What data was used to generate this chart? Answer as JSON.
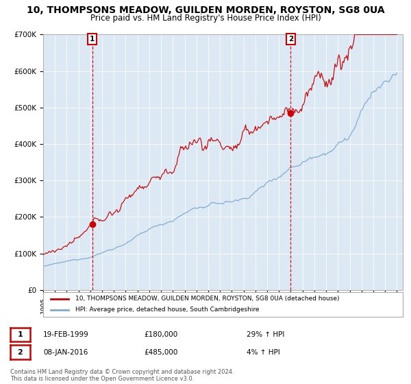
{
  "title": "10, THOMPSONS MEADOW, GUILDEN MORDEN, ROYSTON, SG8 0UA",
  "subtitle": "Price paid vs. HM Land Registry's House Price Index (HPI)",
  "title_fontsize": 10,
  "subtitle_fontsize": 8.5,
  "bg_color": "#dce9f5",
  "red_line_color": "#cc0000",
  "blue_line_color": "#7faacc",
  "sale1_year": 1999.13,
  "sale1_price": 180000,
  "sale2_year": 2016.03,
  "sale2_price": 485000,
  "xmin": 1995,
  "xmax": 2025.5,
  "ymin": 0,
  "ymax": 700000,
  "yticks": [
    0,
    100000,
    200000,
    300000,
    400000,
    500000,
    600000,
    700000
  ],
  "ytick_labels": [
    "£0",
    "£100K",
    "£200K",
    "£300K",
    "£400K",
    "£500K",
    "£600K",
    "£700K"
  ],
  "legend_label_red": "10, THOMPSONS MEADOW, GUILDEN MORDEN, ROYSTON, SG8 0UA (detached house)",
  "legend_label_blue": "HPI: Average price, detached house, South Cambridgeshire",
  "annotation1_date": "19-FEB-1999",
  "annotation1_price": "£180,000",
  "annotation1_hpi": "29% ↑ HPI",
  "annotation2_date": "08-JAN-2016",
  "annotation2_price": "£485,000",
  "annotation2_hpi": "4% ↑ HPI",
  "footer": "Contains HM Land Registry data © Crown copyright and database right 2024.\nThis data is licensed under the Open Government Licence v3.0."
}
